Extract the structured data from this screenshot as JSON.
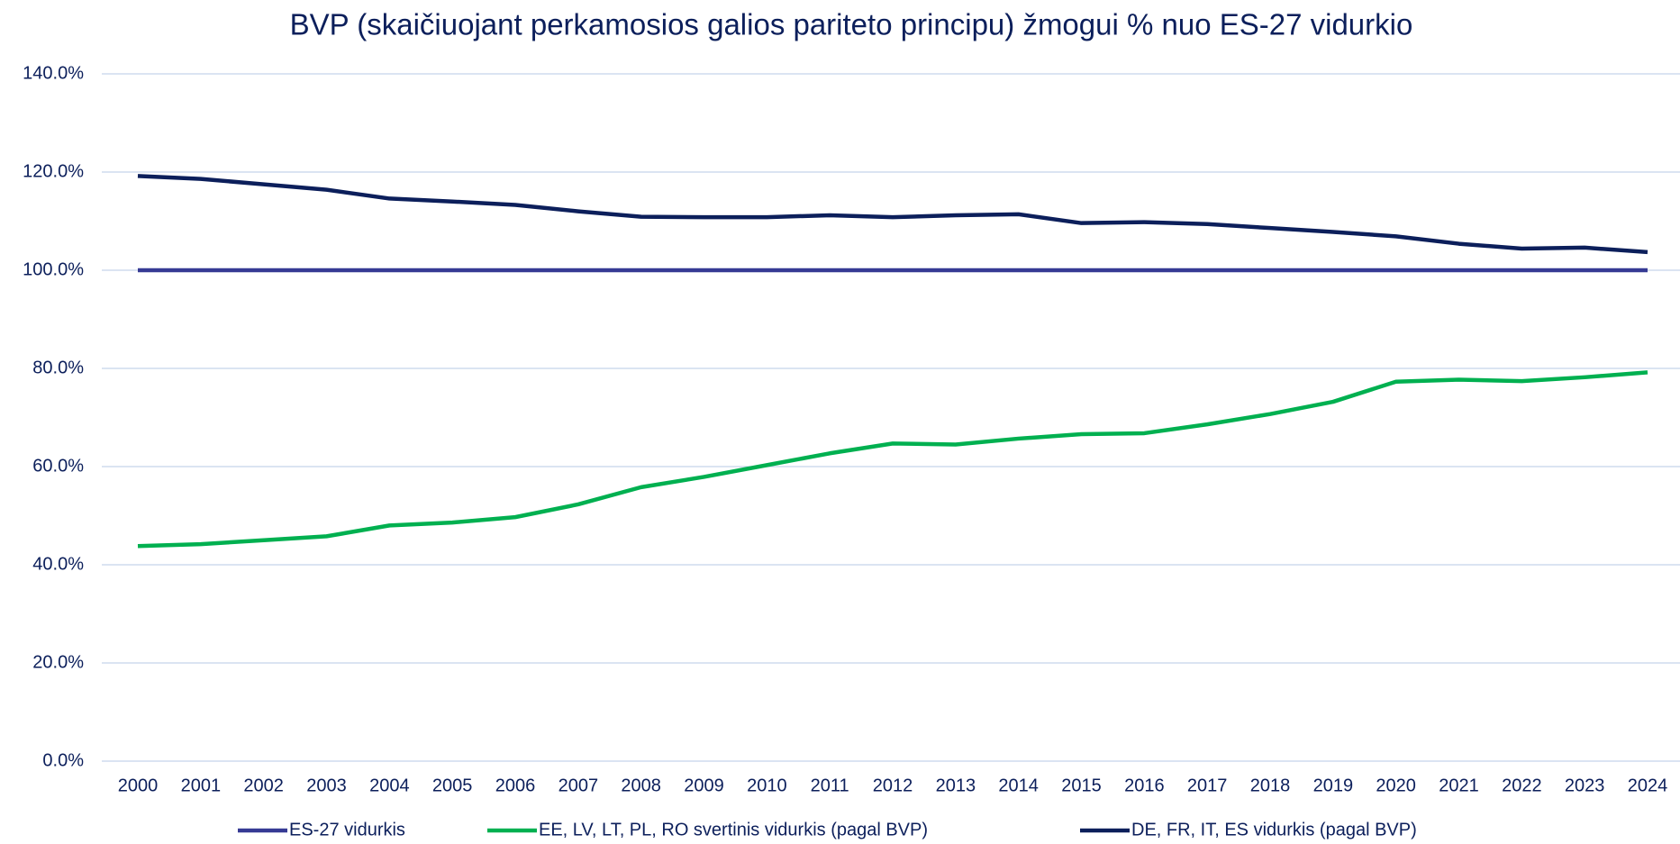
{
  "chart_data": {
    "type": "line",
    "title": "BVP (skaičiuojant perkamosios galios pariteto principu) žmogui % nuo ES-27 vidurkio",
    "categories": [
      "2000",
      "2001",
      "2002",
      "2003",
      "2004",
      "2005",
      "2006",
      "2007",
      "2008",
      "2009",
      "2010",
      "2011",
      "2012",
      "2013",
      "2014",
      "2015",
      "2016",
      "2017",
      "2018",
      "2019",
      "2020",
      "2021",
      "2022",
      "2023",
      "2024"
    ],
    "series": [
      {
        "name": "ES-27 vidurkis",
        "color": "#363a94",
        "values": [
          100,
          100,
          100,
          100,
          100,
          100,
          100,
          100,
          100,
          100,
          100,
          100,
          100,
          100,
          100,
          100,
          100,
          100,
          100,
          100,
          100,
          100,
          100,
          100,
          100
        ]
      },
      {
        "name": "EE, LV, LT, PL, RO svertinis vidurkis (pagal BVP)",
        "color": "#00b050",
        "values": [
          43.8,
          44.2,
          45.0,
          45.8,
          48.0,
          48.6,
          49.7,
          52.3,
          55.8,
          57.9,
          60.3,
          62.7,
          64.7,
          64.5,
          65.7,
          66.6,
          66.8,
          68.6,
          70.7,
          73.2,
          77.3,
          77.7,
          77.4,
          78.2,
          79.2
        ]
      },
      {
        "name": "DE, FR, IT, ES vidurkis (pagal BVP)",
        "color": "#0c1f5b",
        "values": [
          119.2,
          118.6,
          117.5,
          116.4,
          114.6,
          114.0,
          113.3,
          112.0,
          110.9,
          110.8,
          110.8,
          111.2,
          110.8,
          111.2,
          111.4,
          109.6,
          109.8,
          109.4,
          108.6,
          107.8,
          106.9,
          105.4,
          104.4,
          104.6,
          103.7
        ]
      }
    ],
    "ylim": [
      0,
      140
    ],
    "yticks": [
      {
        "value": 0,
        "label": "0.0%"
      },
      {
        "value": 20,
        "label": "20.0%"
      },
      {
        "value": 40,
        "label": "40.0%"
      },
      {
        "value": 60,
        "label": "60.0%"
      },
      {
        "value": 80,
        "label": "80.0%"
      },
      {
        "value": 100,
        "label": "100.0%"
      },
      {
        "value": 120,
        "label": "120.0%"
      },
      {
        "value": 140,
        "label": "140.0%"
      }
    ],
    "grid": true,
    "legend": "bottom"
  }
}
